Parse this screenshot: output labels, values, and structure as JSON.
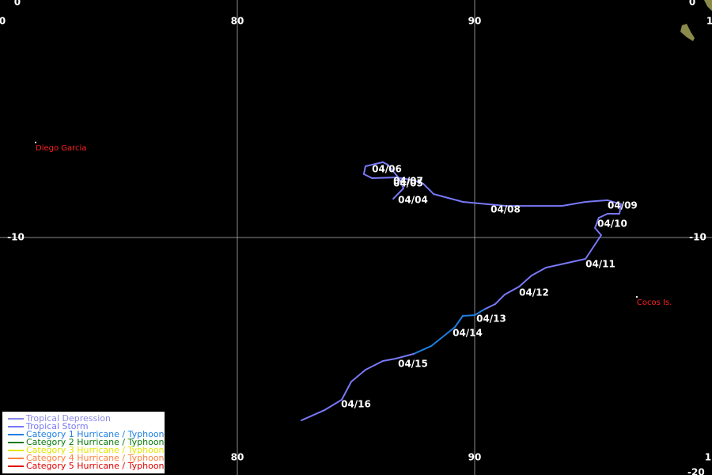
{
  "map": {
    "meridians": [
      {
        "lon": 80,
        "label": "80"
      },
      {
        "lon": 90,
        "label": "90"
      }
    ],
    "parallels": [
      {
        "lat": -10,
        "label": "-10"
      }
    ],
    "edge_labels": [
      {
        "text": "0",
        "lon": 70.1,
        "lat": -0.9
      },
      {
        "text": "0",
        "lon": 70.73,
        "lat": -0.1
      },
      {
        "text": "0",
        "lon": 99.17,
        "lat": -0.1
      },
      {
        "text": "1",
        "lon": 99.9,
        "lat": -0.9
      },
      {
        "text": "1",
        "lon": 99.83,
        "lat": -19.27
      },
      {
        "text": "-20",
        "lon": 99.33,
        "lat": -19.9
      }
    ],
    "places": [
      {
        "name": "Diego Garcia",
        "lon": 71.5,
        "lat": -6.0
      },
      {
        "name": "Cocos Is.",
        "lon": 96.83,
        "lat": -12.5
      }
    ],
    "legend": [
      {
        "name": "Tropical Depression",
        "color": "#8a8ae6"
      },
      {
        "name": "Tropical Storm",
        "color": "#7878f8"
      },
      {
        "name": "Category 1 Hurricane / Typhoon",
        "color": "#1e7fe0"
      },
      {
        "name": "Category 2 Hurricane / Typhoon",
        "color": "#0a7a0a"
      },
      {
        "name": "Category 3 Hurricane / Typhoon",
        "color": "#e6e600"
      },
      {
        "name": "Category 4 Hurricane / Typhoon",
        "color": "#ff8040"
      },
      {
        "name": "Category 5 Hurricane / Typhoon",
        "color": "#e00000"
      }
    ],
    "track": {
      "lon": [
        86.57,
        87.0,
        86.83,
        86.33,
        86.13,
        85.4,
        85.33,
        85.67,
        86.67,
        87.33,
        87.83,
        88.27,
        89.5,
        91.33,
        93.67,
        94.67,
        95.6,
        96.17,
        96.1,
        95.6,
        95.23,
        95.07,
        95.33,
        94.67,
        93.0,
        92.4,
        91.87,
        91.27,
        90.87,
        90.4,
        90.0,
        89.5,
        89.17,
        88.17,
        87.43,
        86.67,
        86.13,
        85.4,
        84.8,
        84.4,
        83.67,
        82.7
      ],
      "lat": [
        -8.37,
        -7.93,
        -7.53,
        -6.93,
        -6.83,
        -7.0,
        -7.33,
        -7.5,
        -7.47,
        -7.57,
        -7.73,
        -8.17,
        -8.5,
        -8.67,
        -8.67,
        -8.5,
        -8.43,
        -8.6,
        -9.0,
        -9.0,
        -9.17,
        -9.6,
        -9.9,
        -10.9,
        -11.27,
        -11.6,
        -12.07,
        -12.4,
        -12.8,
        -13.03,
        -13.27,
        -13.3,
        -13.77,
        -14.57,
        -14.9,
        -15.1,
        -15.2,
        -15.57,
        -16.07,
        -16.83,
        -17.27,
        -17.7
      ],
      "category": [
        1,
        1,
        1,
        1,
        1,
        1,
        1,
        1,
        1,
        1,
        1,
        1,
        1,
        1,
        1,
        1,
        1,
        1,
        1,
        1,
        1,
        1,
        1,
        1,
        1,
        1,
        1,
        1,
        1,
        2,
        2,
        2,
        2,
        2,
        1,
        1,
        1,
        1,
        1,
        1,
        1,
        1
      ]
    },
    "dates": [
      {
        "text": "04/04",
        "lon": 86.77,
        "lat": -8.43
      },
      {
        "text": "04/05",
        "lon": 86.57,
        "lat": -7.73
      },
      {
        "text": "04/06",
        "lon": 85.67,
        "lat": -7.13
      },
      {
        "text": "04/07",
        "lon": 86.57,
        "lat": -7.63
      },
      {
        "text": "04/08",
        "lon": 90.67,
        "lat": -8.83
      },
      {
        "text": "04/09",
        "lon": 95.6,
        "lat": -8.67
      },
      {
        "text": "04/10",
        "lon": 95.17,
        "lat": -9.43
      },
      {
        "text": "04/11",
        "lon": 94.67,
        "lat": -11.13
      },
      {
        "text": "04/12",
        "lon": 91.87,
        "lat": -12.33
      },
      {
        "text": "04/13",
        "lon": 90.07,
        "lat": -13.43
      },
      {
        "text": "04/14",
        "lon": 89.07,
        "lat": -14.03
      },
      {
        "text": "04/15",
        "lon": 86.77,
        "lat": -15.33
      },
      {
        "text": "04/16",
        "lon": 84.37,
        "lat": -17.03
      }
    ]
  }
}
